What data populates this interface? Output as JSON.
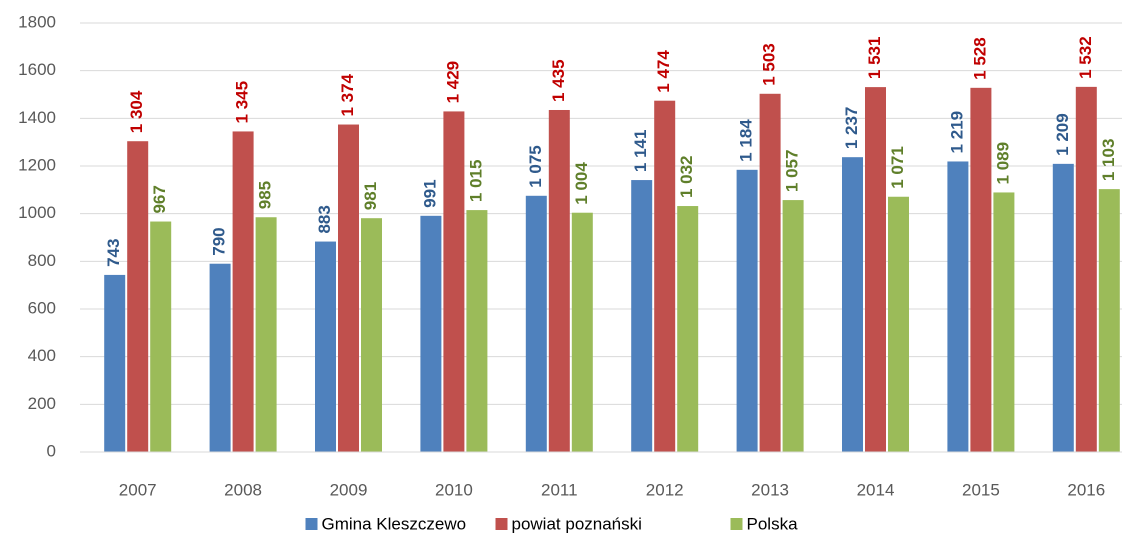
{
  "chart_data": {
    "type": "bar",
    "categories": [
      "2007",
      "2008",
      "2009",
      "2010",
      "2011",
      "2012",
      "2013",
      "2014",
      "2015",
      "2016"
    ],
    "series": [
      {
        "name": "Gmina Kleszczewo",
        "color": "#4f81bd",
        "label_color": "#2f5a8c",
        "values": [
          743,
          790,
          883,
          991,
          1075,
          1141,
          1184,
          1237,
          1219,
          1209
        ],
        "value_labels": [
          "743",
          "790",
          "883",
          "991",
          "1 075",
          "1 141",
          "1 184",
          "1 237",
          "1 219",
          "1 209"
        ]
      },
      {
        "name": "powiat poznański",
        "color": "#c0504d",
        "label_color": "#c00000",
        "values": [
          1304,
          1345,
          1374,
          1429,
          1435,
          1474,
          1503,
          1531,
          1528,
          1532
        ],
        "value_labels": [
          "1 304",
          "1 345",
          "1 374",
          "1 429",
          "1 435",
          "1 474",
          "1 503",
          "1 531",
          "1 528",
          "1 532"
        ]
      },
      {
        "name": "Polska",
        "color": "#9bbb59",
        "label_color": "#5f7f2a",
        "values": [
          967,
          985,
          981,
          1015,
          1004,
          1032,
          1057,
          1071,
          1089,
          1103
        ],
        "value_labels": [
          "967",
          "985",
          "981",
          "1 015",
          "1 004",
          "1 032",
          "1 057",
          "1 071",
          "1 089",
          "1 103"
        ]
      }
    ],
    "ylim": [
      0,
      1800
    ],
    "yticks": [
      0,
      200,
      400,
      600,
      800,
      1000,
      1200,
      1400,
      1600,
      1800
    ],
    "grid": true,
    "legend": "bottom"
  }
}
